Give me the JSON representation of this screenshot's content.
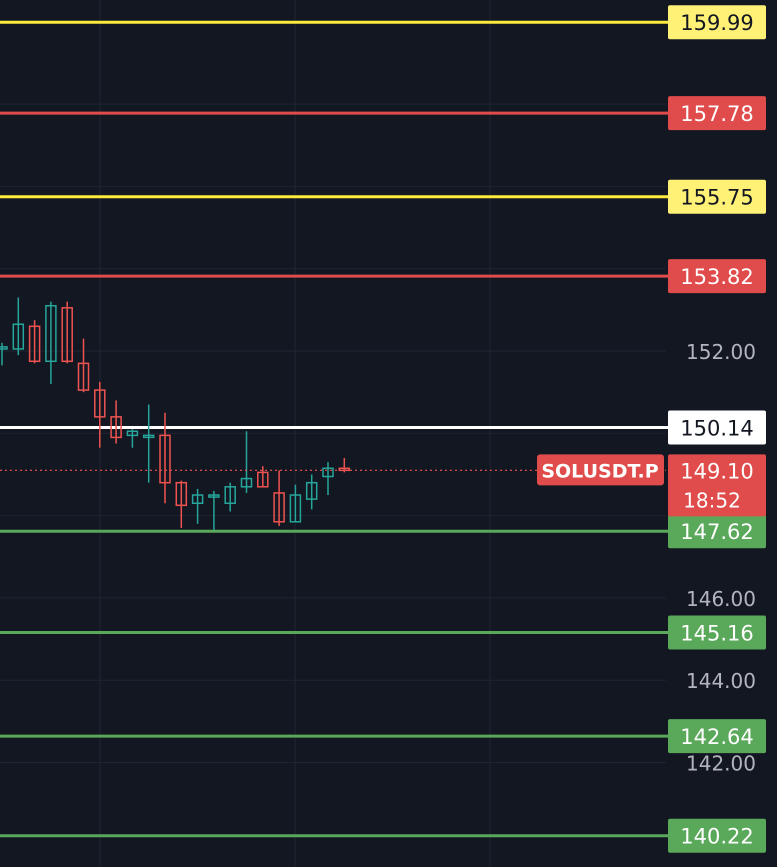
{
  "chart_data": {
    "type": "candlestick",
    "symbol": "SOLUSDT.P",
    "last_price": "149.10",
    "countdown": "18:52",
    "y_axis": {
      "ticks": [
        "142.00",
        "144.00",
        "146.00",
        "152.00"
      ],
      "ylim": [
        139.7,
        160.5
      ],
      "grid": true
    },
    "levels": [
      {
        "price": 159.99,
        "label": "159.99",
        "color": "#ffeb3b",
        "label_bg": "#fff176",
        "label_fg": "#131722"
      },
      {
        "price": 157.78,
        "label": "157.78",
        "color": "#e04b4b",
        "label_bg": "#e04b4b",
        "label_fg": "#ffffff"
      },
      {
        "price": 155.75,
        "label": "155.75",
        "color": "#ffeb3b",
        "label_bg": "#fff176",
        "label_fg": "#131722"
      },
      {
        "price": 153.82,
        "label": "153.82",
        "color": "#e04b4b",
        "label_bg": "#e04b4b",
        "label_fg": "#ffffff"
      },
      {
        "price": 150.14,
        "label": "150.14",
        "color": "#ffffff",
        "label_bg": "#ffffff",
        "label_fg": "#131722"
      },
      {
        "price": 147.62,
        "label": "147.62",
        "color": "#5aa85a",
        "label_bg": "#5aa85a",
        "label_fg": "#ffffff"
      },
      {
        "price": 145.16,
        "label": "145.16",
        "color": "#5aa85a",
        "label_bg": "#5aa85a",
        "label_fg": "#ffffff"
      },
      {
        "price": 142.64,
        "label": "142.64",
        "color": "#5aa85a",
        "label_bg": "#5aa85a",
        "label_fg": "#ffffff"
      },
      {
        "price": 140.22,
        "label": "140.22",
        "color": "#5aa85a",
        "label_bg": "#5aa85a",
        "label_fg": "#ffffff"
      }
    ],
    "candles": [
      {
        "o": 152.05,
        "h": 152.2,
        "l": 151.65,
        "c": 152.1
      },
      {
        "o": 152.05,
        "h": 153.3,
        "l": 151.9,
        "c": 152.65
      },
      {
        "o": 152.6,
        "h": 152.75,
        "l": 151.7,
        "c": 151.75
      },
      {
        "o": 151.75,
        "h": 153.2,
        "l": 151.2,
        "c": 153.1
      },
      {
        "o": 153.05,
        "h": 153.2,
        "l": 151.7,
        "c": 151.75
      },
      {
        "o": 151.7,
        "h": 152.3,
        "l": 151.0,
        "c": 151.05
      },
      {
        "o": 151.05,
        "h": 151.25,
        "l": 149.65,
        "c": 150.4
      },
      {
        "o": 150.4,
        "h": 150.8,
        "l": 149.75,
        "c": 149.9
      },
      {
        "o": 149.95,
        "h": 150.1,
        "l": 149.65,
        "c": 150.05
      },
      {
        "o": 149.95,
        "h": 150.7,
        "l": 148.8,
        "c": 149.95
      },
      {
        "o": 149.95,
        "h": 150.5,
        "l": 148.3,
        "c": 148.8
      },
      {
        "o": 148.8,
        "h": 148.85,
        "l": 147.7,
        "c": 148.25
      },
      {
        "o": 148.3,
        "h": 148.65,
        "l": 147.8,
        "c": 148.5
      },
      {
        "o": 148.45,
        "h": 148.6,
        "l": 147.65,
        "c": 148.5
      },
      {
        "o": 148.3,
        "h": 148.8,
        "l": 148.1,
        "c": 148.7
      },
      {
        "o": 148.7,
        "h": 150.05,
        "l": 148.55,
        "c": 148.9
      },
      {
        "o": 149.05,
        "h": 149.2,
        "l": 148.7,
        "c": 148.7
      },
      {
        "o": 148.55,
        "h": 149.1,
        "l": 147.75,
        "c": 147.85
      },
      {
        "o": 147.85,
        "h": 148.75,
        "l": 147.85,
        "c": 148.5
      },
      {
        "o": 148.4,
        "h": 149.0,
        "l": 148.15,
        "c": 148.8
      },
      {
        "o": 148.95,
        "h": 149.3,
        "l": 148.5,
        "c": 149.15
      },
      {
        "o": 149.15,
        "h": 149.4,
        "l": 149.05,
        "c": 149.1
      }
    ]
  }
}
